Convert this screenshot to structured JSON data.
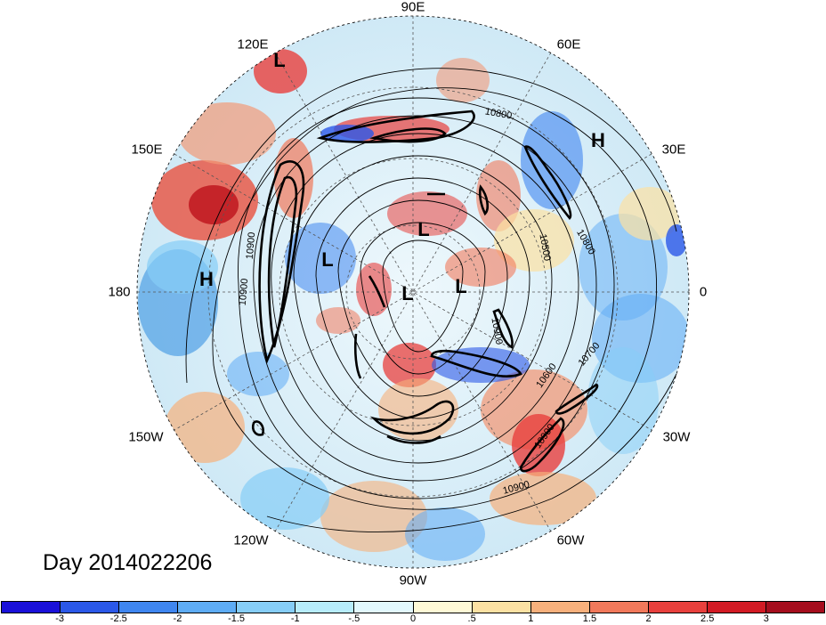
{
  "title": "Day 2014022206",
  "longitude_labels": [
    "90E",
    "60E",
    "30E",
    "0",
    "30W",
    "60W",
    "90W",
    "120W",
    "150W",
    "180",
    "150E",
    "120E"
  ],
  "pressure_centers": [
    {
      "label": "L",
      "name": "low-north-pacific"
    },
    {
      "label": "H",
      "name": "high-europe"
    },
    {
      "label": "L",
      "name": "low-arctic-1"
    },
    {
      "label": "L",
      "name": "low-arctic-2"
    },
    {
      "label": "L",
      "name": "low-arctic-3"
    },
    {
      "label": "L",
      "name": "low-alaska"
    },
    {
      "label": "H",
      "name": "high-pacific"
    }
  ],
  "contour_labels": [
    "10800",
    "10900",
    "10900",
    "10800",
    "10500",
    "10900",
    "10600",
    "10700",
    "10900",
    "10900",
    "10500"
  ],
  "colorbar": {
    "ticks": [
      "-3",
      "-2.5",
      "-2",
      "-1.5",
      "-1",
      "-.5",
      "0",
      ".5",
      "1",
      "1.5",
      "2",
      "2.5",
      "3"
    ],
    "colors": [
      "#1a10d9",
      "#2b58e8",
      "#3f86f0",
      "#5eacf5",
      "#86cdf7",
      "#b7ecfb",
      "#e2f8fd",
      "#fff9d6",
      "#fce1a3",
      "#f7b07c",
      "#f1795b",
      "#e8403d",
      "#d21a24",
      "#a50d1d"
    ]
  },
  "map_colors": {
    "ocean_base": "#d6eef8",
    "warm": "#f29a78",
    "cold": "#4f9fe6",
    "contour": "#000000"
  }
}
